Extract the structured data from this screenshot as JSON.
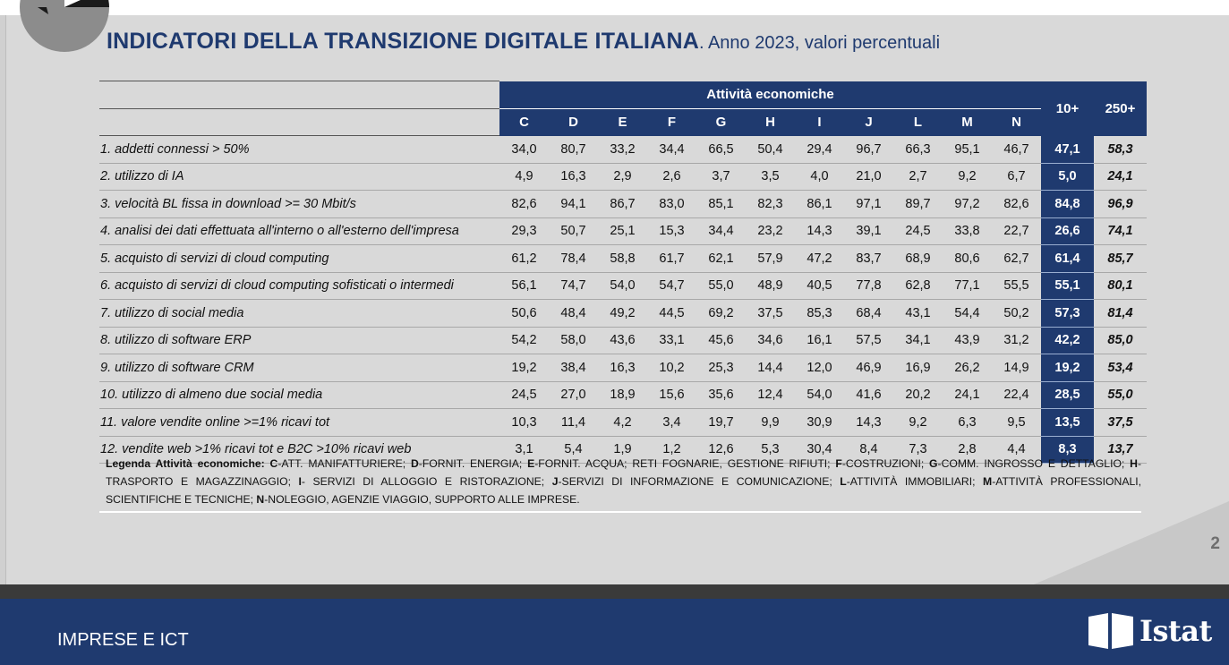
{
  "title": {
    "main": "INDICATORI DELLA TRANSIZIONE DIGITALE ITALIANA",
    "sub": ". Anno 2023, valori percentuali"
  },
  "table": {
    "group_header": "Attività economiche",
    "columns": [
      "C",
      "D",
      "E",
      "F",
      "G",
      "H",
      "I",
      "J",
      "L",
      "M",
      "N"
    ],
    "total_columns": [
      "10+",
      "250+"
    ],
    "rows": [
      {
        "label": "1. addetti connessi > 50%",
        "values": [
          "34,0",
          "80,7",
          "33,2",
          "34,4",
          "66,5",
          "50,4",
          "29,4",
          "96,7",
          "66,3",
          "95,1",
          "46,7"
        ],
        "v10": "47,1",
        "v250": "58,3"
      },
      {
        "label": "2. utilizzo di IA",
        "values": [
          "4,9",
          "16,3",
          "2,9",
          "2,6",
          "3,7",
          "3,5",
          "4,0",
          "21,0",
          "2,7",
          "9,2",
          "6,7"
        ],
        "v10": "5,0",
        "v250": "24,1"
      },
      {
        "label": "3. velocità BL fissa in download >= 30 Mbit/s",
        "values": [
          "82,6",
          "94,1",
          "86,7",
          "83,0",
          "85,1",
          "82,3",
          "86,1",
          "97,1",
          "89,7",
          "97,2",
          "82,6"
        ],
        "v10": "84,8",
        "v250": "96,9"
      },
      {
        "label": "4. analisi dei dati effettuata all'interno o all'esterno dell'impresa",
        "values": [
          "29,3",
          "50,7",
          "25,1",
          "15,3",
          "34,4",
          "23,2",
          "14,3",
          "39,1",
          "24,5",
          "33,8",
          "22,7"
        ],
        "v10": "26,6",
        "v250": "74,1"
      },
      {
        "label": "5. acquisto di servizi di cloud computing",
        "values": [
          "61,2",
          "78,4",
          "58,8",
          "61,7",
          "62,1",
          "57,9",
          "47,2",
          "83,7",
          "68,9",
          "80,6",
          "62,7"
        ],
        "v10": "61,4",
        "v250": "85,7"
      },
      {
        "label": "6. acquisto di servizi di cloud computing sofisticati o intermedi",
        "values": [
          "56,1",
          "74,7",
          "54,0",
          "54,7",
          "55,0",
          "48,9",
          "40,5",
          "77,8",
          "62,8",
          "77,1",
          "55,5"
        ],
        "v10": "55,1",
        "v250": "80,1"
      },
      {
        "label": "7. utilizzo di social media",
        "values": [
          "50,6",
          "48,4",
          "49,2",
          "44,5",
          "69,2",
          "37,5",
          "85,3",
          "68,4",
          "43,1",
          "54,4",
          "50,2"
        ],
        "v10": "57,3",
        "v250": "81,4"
      },
      {
        "label": "8. utilizzo di software ERP",
        "values": [
          "54,2",
          "58,0",
          "43,6",
          "33,1",
          "45,6",
          "34,6",
          "16,1",
          "57,5",
          "34,1",
          "43,9",
          "31,2"
        ],
        "v10": "42,2",
        "v250": "85,0"
      },
      {
        "label": "9. utilizzo di software CRM",
        "values": [
          "19,2",
          "38,4",
          "16,3",
          "10,2",
          "25,3",
          "14,4",
          "12,0",
          "46,9",
          "16,9",
          "26,2",
          "14,9"
        ],
        "v10": "19,2",
        "v250": "53,4"
      },
      {
        "label": "10.  utilizzo di almeno due social media",
        "values": [
          "24,5",
          "27,0",
          "18,9",
          "15,6",
          "35,6",
          "12,4",
          "54,0",
          "41,6",
          "20,2",
          "24,1",
          "22,4"
        ],
        "v10": "28,5",
        "v250": "55,0"
      },
      {
        "label": "11. valore vendite online >=1% ricavi tot",
        "values": [
          "10,3",
          "11,4",
          "4,2",
          "3,4",
          "19,7",
          "9,9",
          "30,9",
          "14,3",
          "9,2",
          "6,3",
          "9,5"
        ],
        "v10": "13,5",
        "v250": "37,5"
      },
      {
        "label": "12. vendite web >1% ricavi tot e  B2C >10% ricavi web",
        "values": [
          "3,1",
          "5,4",
          "1,9",
          "1,2",
          "12,6",
          "5,3",
          "30,4",
          "8,4",
          "7,3",
          "2,8",
          "4,4"
        ],
        "v10": "8,3",
        "v250": "13,7"
      }
    ]
  },
  "legend": {
    "title": "Legenda Attività economiche: ",
    "items": [
      {
        "code": "C",
        "text": "-ATT. MANIFATTURIERE; "
      },
      {
        "code": "D",
        "text": "-FORNIT. ENERGIA; "
      },
      {
        "code": "E",
        "text": "-FORNIT. ACQUA; RETI FOGNARIE, GESTIONE RIFIUTI; "
      },
      {
        "code": "F",
        "text": "-COSTRUZIONI; "
      },
      {
        "code": "G",
        "text": "-COMM. INGROSSO E DETTAGLIO; "
      },
      {
        "code": "H",
        "text": "-TRASPORTO E MAGAZZINAGGIO; "
      },
      {
        "code": "I",
        "text": "- SERVIZI DI ALLOGGIO E RISTORAZIONE; "
      },
      {
        "code": "J",
        "text": "-SERVIZI DI INFORMAZIONE E COMUNICAZIONE; "
      },
      {
        "code": "L",
        "text": "-ATTIVITÀ IMMOBILIARI; "
      },
      {
        "code": "M",
        "text": "-ATTIVITÀ PROFESSIONALI, SCIENTIFICHE E TECNICHE; "
      },
      {
        "code": "N",
        "text": "-NOLEGGIO, AGENZIE VIAGGIO, SUPPORTO ALLE IMPRESE."
      }
    ]
  },
  "page_number": "2",
  "footer": {
    "section": "IMPRESE E ICT",
    "logo_text": "Istat"
  },
  "colors": {
    "accent": "#1f3a6f",
    "slide_bg": "#d9d9d9",
    "footer_bg": "#1f3a6f"
  }
}
